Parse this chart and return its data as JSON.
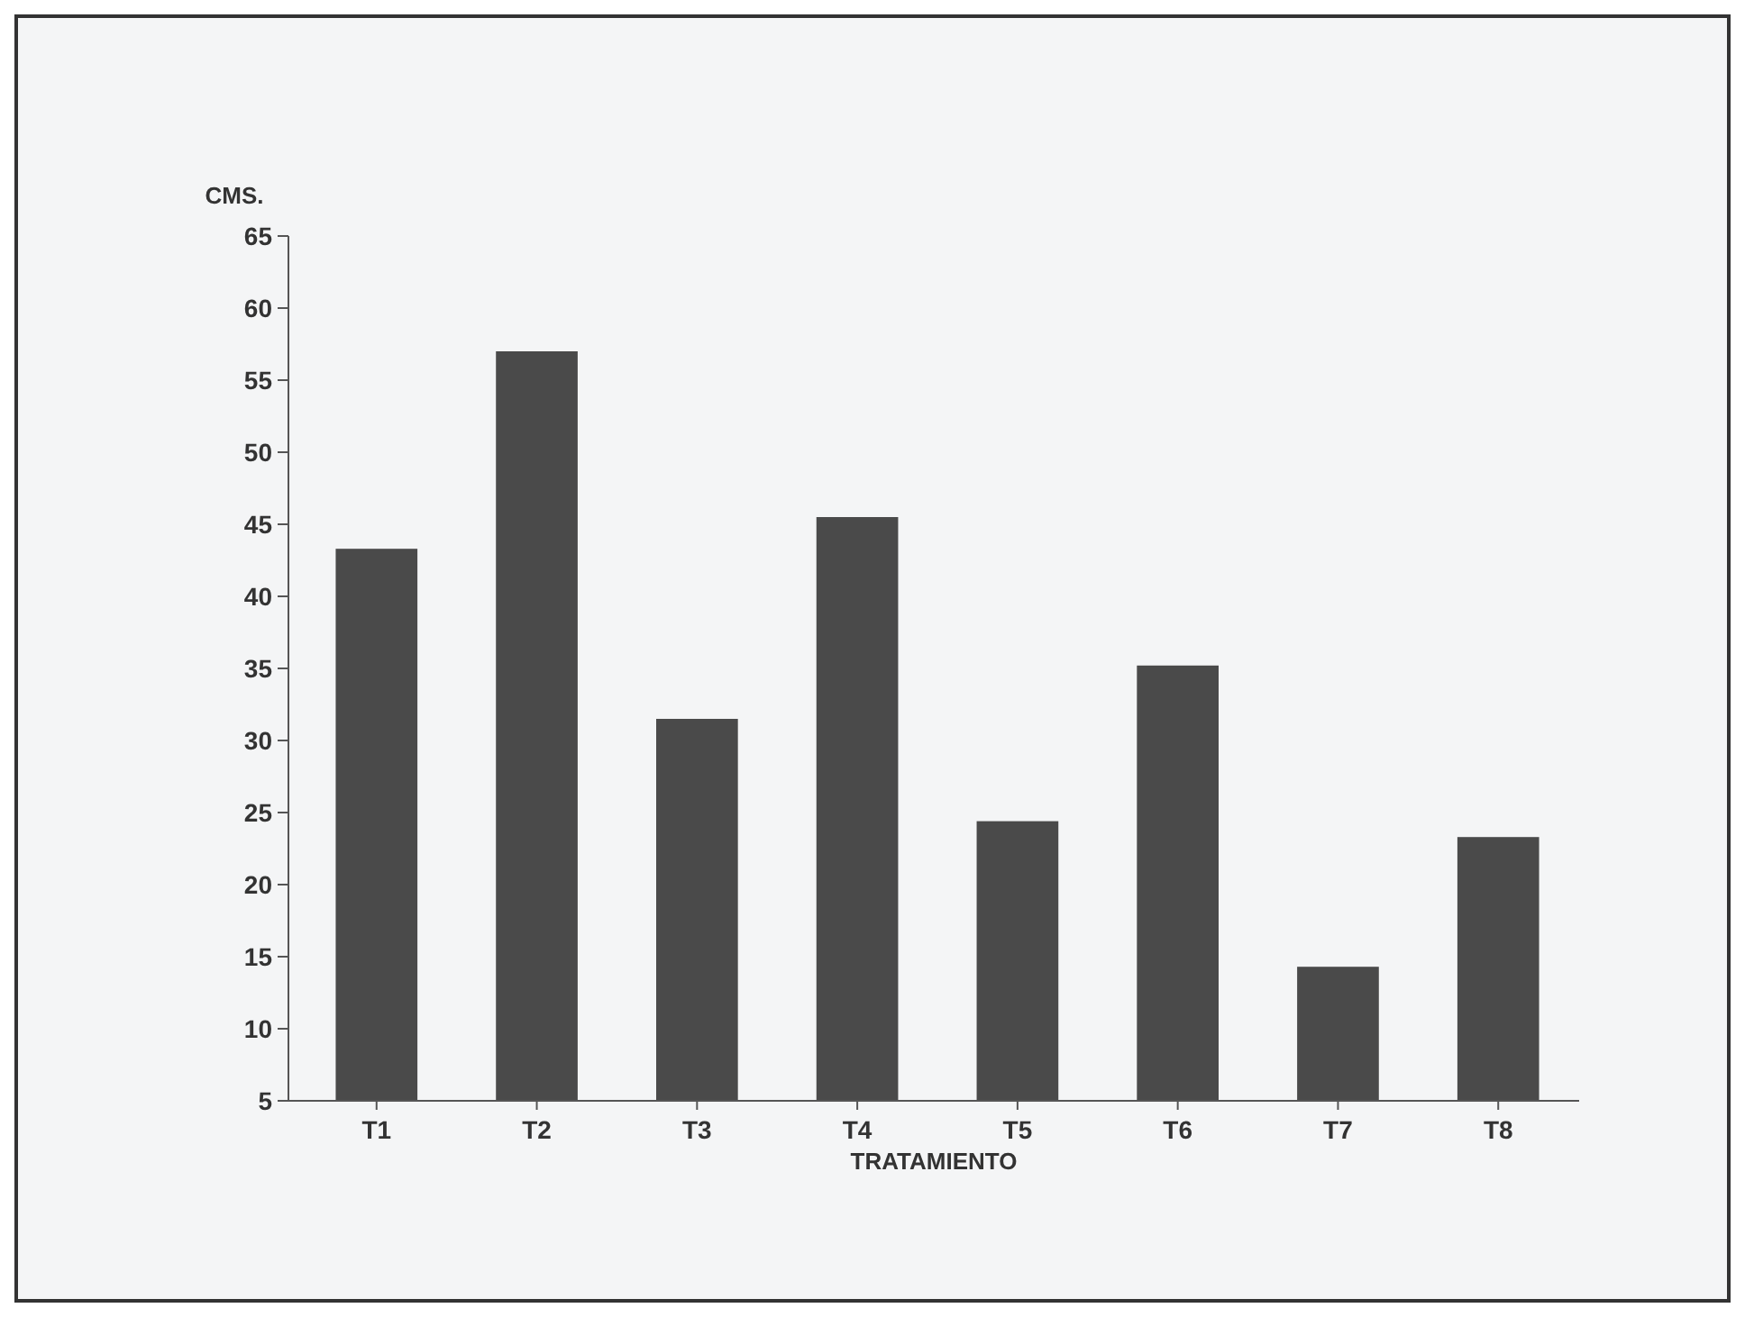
{
  "chart_data": {
    "type": "bar",
    "ylabel": "CMS.",
    "xlabel": "TRATAMIENTO",
    "categories": [
      "T1",
      "T2",
      "T3",
      "T4",
      "T5",
      "T6",
      "T7",
      "T8"
    ],
    "values": [
      43.3,
      57,
      31.5,
      45.5,
      24.4,
      35.2,
      14.3,
      23.3
    ],
    "color": "#4a4a4a",
    "ylim": [
      5,
      65
    ],
    "yticks": [
      5,
      10,
      15,
      20,
      25,
      30,
      35,
      40,
      45,
      50,
      55,
      60,
      65
    ],
    "grid": false
  }
}
